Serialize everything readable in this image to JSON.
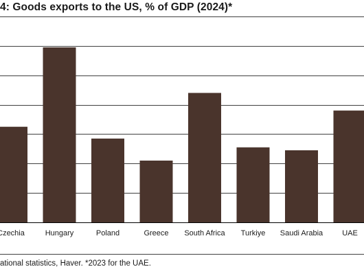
{
  "title": "4: Goods exports to the US, % of GDP (2024)*",
  "source_note": "ational statistics, Haver. *2023 for the UAE.",
  "colors": {
    "bar": "#4a342c",
    "gridline": "#000000",
    "axis": "#000000"
  },
  "chart_data": {
    "type": "bar",
    "title": "4: Goods exports to the US, % of GDP (2024)*",
    "xlabel": "",
    "ylabel": "",
    "categories": [
      "Czechia",
      "Hungary",
      "Poland",
      "Greece",
      "South Africa",
      "Turkiye",
      "Saudi Arabia",
      "UAE"
    ],
    "values": [
      3.25,
      5.95,
      2.85,
      2.1,
      4.4,
      2.55,
      2.45,
      3.8
    ],
    "ylim": [
      0,
      7
    ],
    "grid": true,
    "legend": "none"
  }
}
